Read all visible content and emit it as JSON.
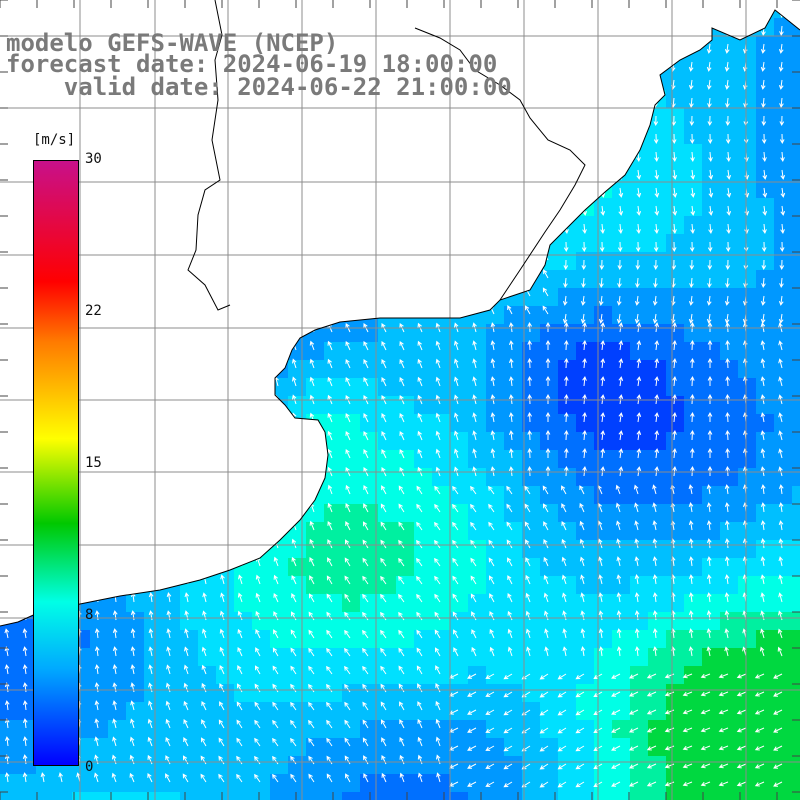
{
  "title": {
    "line1": "modelo GEFS-WAVE (NCEP)",
    "line2": "forecast date: 2024-06-19 18:00:00",
    "line3": "    valid date: 2024-06-22 21:00:00"
  },
  "colorbar": {
    "unit": "[m/s]",
    "ticks": [
      "30",
      "22",
      "15",
      "8",
      "0"
    ],
    "tick_values": [
      30,
      22,
      15,
      8,
      0
    ],
    "range": [
      0,
      30
    ],
    "colors": [
      "#0000ff",
      "#00aaff",
      "#00ffe6",
      "#00c800",
      "#ffff00",
      "#ff7b00",
      "#ff0000",
      "#c8108a"
    ]
  },
  "colors": {
    "land": "#ffffff",
    "coastline": "#000000",
    "grid": "#808080",
    "arrow": "#ffffff",
    "title": "#7a7a7a"
  }
}
